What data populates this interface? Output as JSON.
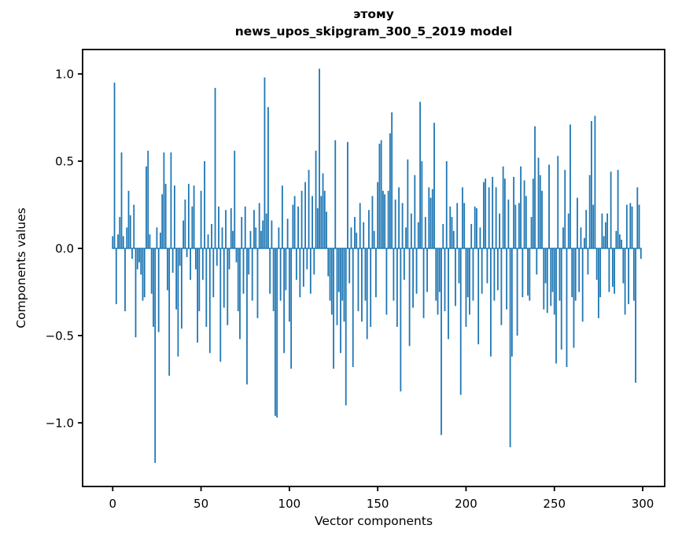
{
  "figure": {
    "title_line1": "этому",
    "title_line2": "news_upos_skipgram_300_5_2019 model",
    "xlabel": "Vector components",
    "ylabel": "Components values"
  },
  "colors": {
    "bar": "#1f77b4",
    "axis": "#000000",
    "background": "#ffffff"
  },
  "chart_data": {
    "type": "bar",
    "title": "этому\nnews_upos_skipgram_300_5_2019 model",
    "xlabel": "Vector components",
    "ylabel": "Components values",
    "legend": null,
    "grid": false,
    "bar_color": "#1f77b4",
    "bar_width": 0.8,
    "n_components": 300,
    "xticks": [
      0,
      50,
      100,
      150,
      200,
      250,
      300
    ],
    "yticks": [
      -1.0,
      -0.5,
      0.0,
      0.5,
      1.0
    ],
    "xlim": [
      -17.05,
      312.45
    ],
    "ylim": [
      -1.365,
      1.14
    ],
    "values": [
      0.07,
      0.95,
      -0.32,
      0.08,
      0.18,
      0.55,
      0.07,
      -0.36,
      0.12,
      0.33,
      0.19,
      -0.06,
      0.25,
      -0.51,
      -0.12,
      -0.08,
      -0.15,
      -0.3,
      -0.28,
      0.47,
      0.56,
      0.08,
      -0.26,
      -0.45,
      -1.23,
      0.12,
      -0.48,
      0.09,
      0.31,
      0.55,
      0.37,
      -0.24,
      -0.73,
      0.55,
      -0.14,
      0.36,
      -0.35,
      -0.62,
      -0.1,
      -0.46,
      0.16,
      0.28,
      -0.05,
      0.37,
      -0.18,
      0.24,
      0.36,
      -0.12,
      -0.54,
      -0.36,
      0.33,
      -0.18,
      0.5,
      -0.45,
      0.08,
      -0.6,
      0.14,
      -0.28,
      0.92,
      -0.1,
      0.24,
      -0.65,
      0.12,
      -0.34,
      0.22,
      -0.44,
      -0.12,
      0.23,
      0.1,
      0.56,
      -0.08,
      -0.36,
      -0.52,
      0.18,
      -0.26,
      0.24,
      -0.78,
      -0.15,
      0.1,
      -0.3,
      0.22,
      0.12,
      -0.4,
      0.26,
      0.1,
      0.16,
      0.98,
      0.2,
      0.81,
      -0.26,
      0.16,
      -0.36,
      -0.96,
      -0.97,
      0.12,
      -0.3,
      0.36,
      -0.6,
      -0.24,
      0.17,
      -0.42,
      -0.69,
      0.25,
      0.3,
      -0.18,
      0.24,
      -0.28,
      0.33,
      -0.22,
      0.38,
      -0.12,
      0.45,
      -0.26,
      0.3,
      -0.15,
      0.56,
      0.23,
      1.03,
      0.3,
      0.43,
      0.33,
      0.21,
      -0.16,
      -0.3,
      -0.38,
      -0.69,
      0.62,
      -0.44,
      -0.25,
      -0.6,
      -0.3,
      -0.42,
      -0.9,
      0.61,
      -0.2,
      0.12,
      -0.68,
      0.18,
      0.09,
      -0.36,
      0.26,
      -0.42,
      0.15,
      -0.3,
      -0.52,
      0.22,
      -0.45,
      0.3,
      0.1,
      -0.28,
      0.38,
      0.6,
      0.62,
      0.33,
      0.31,
      -0.38,
      0.33,
      0.66,
      0.78,
      -0.3,
      0.28,
      -0.45,
      0.35,
      -0.82,
      0.26,
      -0.18,
      0.12,
      0.51,
      -0.56,
      0.2,
      -0.34,
      0.42,
      -0.26,
      0.15,
      0.84,
      0.5,
      -0.4,
      0.18,
      -0.25,
      0.35,
      0.29,
      0.34,
      0.72,
      -0.3,
      -0.38,
      -0.25,
      -1.07,
      0.14,
      -0.36,
      0.5,
      -0.52,
      0.24,
      0.18,
      0.1,
      -0.33,
      0.26,
      -0.2,
      -0.84,
      0.35,
      0.26,
      -0.45,
      -0.28,
      -0.38,
      0.14,
      -0.3,
      0.24,
      0.23,
      -0.55,
      0.12,
      -0.26,
      0.38,
      0.4,
      -0.2,
      0.35,
      -0.62,
      0.41,
      -0.3,
      0.35,
      -0.24,
      0.2,
      -0.44,
      0.47,
      0.4,
      -0.35,
      0.28,
      -1.14,
      -0.62,
      0.41,
      0.25,
      -0.5,
      0.26,
      0.47,
      -0.28,
      0.39,
      0.3,
      -0.27,
      -0.3,
      0.18,
      0.4,
      0.7,
      -0.15,
      0.52,
      0.42,
      0.33,
      -0.35,
      -0.2,
      -0.37,
      0.48,
      -0.33,
      -0.25,
      -0.38,
      -0.66,
      0.53,
      -0.3,
      -0.58,
      0.12,
      0.45,
      -0.68,
      0.2,
      0.71,
      -0.28,
      -0.57,
      -0.3,
      0.29,
      -0.25,
      0.12,
      -0.42,
      0.06,
      0.22,
      -0.15,
      0.42,
      0.73,
      0.25,
      0.76,
      -0.18,
      -0.4,
      -0.28,
      0.2,
      0.07,
      0.15,
      0.2,
      -0.25,
      0.44,
      -0.22,
      -0.26,
      0.1,
      0.45,
      0.08,
      0.05,
      -0.2,
      -0.38,
      0.25,
      -0.32,
      0.26,
      0.24,
      -0.3,
      -0.77,
      0.35,
      0.25,
      -0.06
    ]
  }
}
